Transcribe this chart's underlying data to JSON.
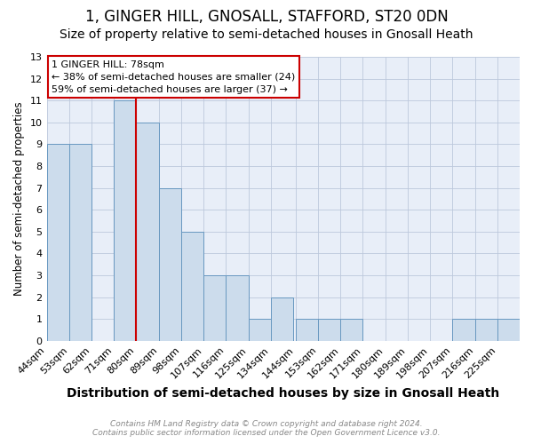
{
  "title": "1, GINGER HILL, GNOSALL, STAFFORD, ST20 0DN",
  "subtitle": "Size of property relative to semi-detached houses in Gnosall Heath",
  "xlabel": "Distribution of semi-detached houses by size in Gnosall Heath",
  "ylabel": "Number of semi-detached properties",
  "bins": [
    44,
    53,
    62,
    71,
    80,
    89,
    98,
    107,
    116,
    125,
    134,
    144,
    153,
    162,
    171,
    180,
    189,
    198,
    207,
    216,
    225
  ],
  "counts": [
    9,
    9,
    0,
    11,
    10,
    7,
    5,
    3,
    3,
    1,
    2,
    1,
    1,
    1,
    0,
    0,
    0,
    0,
    1,
    1,
    1
  ],
  "bin_labels": [
    "44sqm",
    "53sqm",
    "62sqm",
    "71sqm",
    "80sqm",
    "89sqm",
    "98sqm",
    "107sqm",
    "116sqm",
    "125sqm",
    "134sqm",
    "144sqm",
    "153sqm",
    "162sqm",
    "171sqm",
    "180sqm",
    "189sqm",
    "198sqm",
    "207sqm",
    "216sqm",
    "225sqm"
  ],
  "bar_color": "#ccdcec",
  "bar_edge_color": "#6898c0",
  "vline_color": "#cc0000",
  "vline_position": 80,
  "annotation_line1": "1 GINGER HILL: 78sqm",
  "annotation_line2": "← 38% of semi-detached houses are smaller (24)",
  "annotation_line3": "59% of semi-detached houses are larger (37) →",
  "ylim": [
    0,
    13
  ],
  "yticks": [
    0,
    1,
    2,
    3,
    4,
    5,
    6,
    7,
    8,
    9,
    10,
    11,
    12,
    13
  ],
  "grid_color": "#bcc8dc",
  "background_color": "#e8eef8",
  "footer_line1": "Contains HM Land Registry data © Crown copyright and database right 2024.",
  "footer_line2": "Contains public sector information licensed under the Open Government Licence v3.0.",
  "title_fontsize": 12,
  "subtitle_fontsize": 10,
  "xlabel_fontsize": 10,
  "ylabel_fontsize": 8.5,
  "tick_fontsize": 8,
  "annotation_fontsize": 8,
  "footer_fontsize": 6.5
}
